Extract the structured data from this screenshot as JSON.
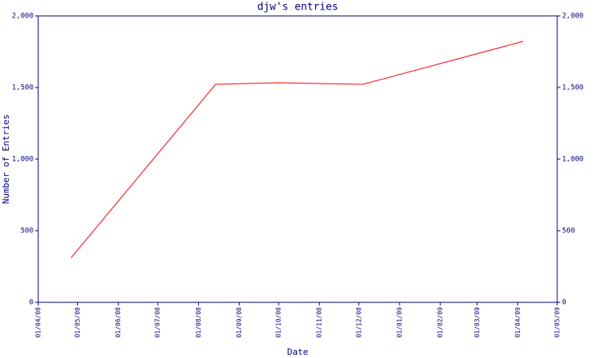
{
  "chart_data": {
    "type": "line",
    "title": "djw's entries",
    "x_label": "Date",
    "y_label": "Number of Entries",
    "x": [
      "2008-04-26",
      "2008-08-14",
      "2008-10-01",
      "2008-12-04",
      "2009-04-05"
    ],
    "values": [
      311,
      1522,
      1533,
      1522,
      1822
    ],
    "color": "#ff0000",
    "xlim": [
      "2008-04-01",
      "2009-05-01"
    ],
    "xticks": [
      {
        "value": "2008-04-01",
        "label": "01/04/08"
      },
      {
        "value": "2008-05-01",
        "label": "01/05/08"
      },
      {
        "value": "2008-06-01",
        "label": "01/06/08"
      },
      {
        "value": "2008-07-01",
        "label": "01/07/08"
      },
      {
        "value": "2008-08-01",
        "label": "01/08/08"
      },
      {
        "value": "2008-09-01",
        "label": "01/09/08"
      },
      {
        "value": "2008-10-01",
        "label": "01/10/08"
      },
      {
        "value": "2008-11-01",
        "label": "01/11/08"
      },
      {
        "value": "2008-12-01",
        "label": "01/12/08"
      },
      {
        "value": "2009-01-01",
        "label": "01/01/09"
      },
      {
        "value": "2009-02-01",
        "label": "01/02/09"
      },
      {
        "value": "2009-03-01",
        "label": "01/03/09"
      },
      {
        "value": "2009-04-01",
        "label": "01/04/09"
      },
      {
        "value": "2009-05-01",
        "label": "01/05/09"
      }
    ],
    "ylim": [
      0,
      2000
    ],
    "yticks": [
      0,
      500,
      {
        "value": 1000,
        "label": "1,000"
      },
      {
        "value": 1500,
        "label": "1,500"
      },
      {
        "value": 2000,
        "label": "2,000"
      }
    ],
    "grid": false
  }
}
